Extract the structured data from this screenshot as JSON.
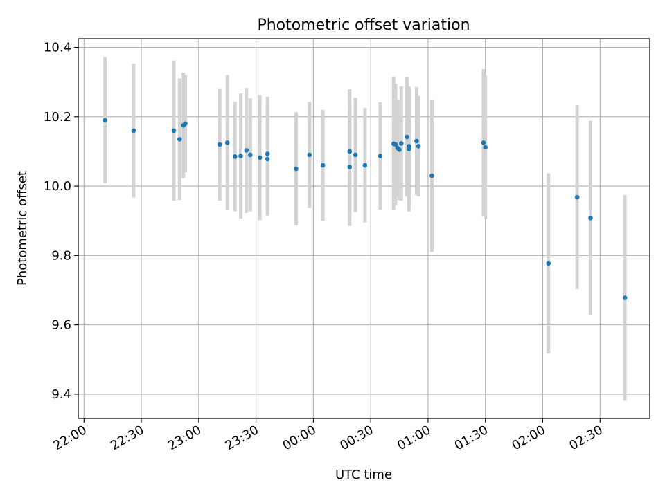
{
  "chart_data": {
    "type": "scatter",
    "title": "Photometric offset variation",
    "xlabel": "UTC time",
    "ylabel": "Photometric offset",
    "xlim": [
      "21:57",
      "02:56"
    ],
    "ylim": [
      9.33,
      10.425
    ],
    "grid": true,
    "x_ticks": [
      "22:00",
      "22:30",
      "23:00",
      "23:30",
      "00:00",
      "00:30",
      "01:00",
      "01:30",
      "02:00",
      "02:30"
    ],
    "y_ticks": [
      "9.4",
      "9.6",
      "9.8",
      "10.0",
      "10.2",
      "10.4"
    ],
    "colors": {
      "point": "#1f77b4",
      "errorbar": "#d3d3d3",
      "grid": "#b0b0b0"
    },
    "series": [
      {
        "points": [
          {
            "x": "22:11",
            "y": 10.19,
            "yerr": 0.182
          },
          {
            "x": "22:26",
            "y": 10.16,
            "yerr": 0.193
          },
          {
            "x": "22:47",
            "y": 10.16,
            "yerr": 0.202
          },
          {
            "x": "22:50",
            "y": 10.135,
            "yerr": 0.175
          },
          {
            "x": "22:52",
            "y": 10.175,
            "yerr": 0.152
          },
          {
            "x": "22:53",
            "y": 10.18,
            "yerr": 0.14
          },
          {
            "x": "23:11",
            "y": 10.12,
            "yerr": 0.162
          },
          {
            "x": "23:15",
            "y": 10.125,
            "yerr": 0.195
          },
          {
            "x": "23:19",
            "y": 10.085,
            "yerr": 0.158
          },
          {
            "x": "23:22",
            "y": 10.087,
            "yerr": 0.18
          },
          {
            "x": "23:25",
            "y": 10.103,
            "yerr": 0.18
          },
          {
            "x": "23:27",
            "y": 10.09,
            "yerr": 0.163
          },
          {
            "x": "23:32",
            "y": 10.082,
            "yerr": 0.18
          },
          {
            "x": "23:36",
            "y": 10.078,
            "yerr": 0.163
          },
          {
            "x": "23:36",
            "y": 10.093,
            "yerr": 0.165
          },
          {
            "x": "23:51",
            "y": 10.05,
            "yerr": 0.163
          },
          {
            "x": "23:58",
            "y": 10.09,
            "yerr": 0.153
          },
          {
            "x": "00:05",
            "y": 10.06,
            "yerr": 0.16
          },
          {
            "x": "00:19",
            "y": 10.055,
            "yerr": 0.17
          },
          {
            "x": "00:19",
            "y": 10.1,
            "yerr": 0.18
          },
          {
            "x": "00:22",
            "y": 10.09,
            "yerr": 0.165
          },
          {
            "x": "00:27",
            "y": 10.06,
            "yerr": 0.165
          },
          {
            "x": "00:35",
            "y": 10.087,
            "yerr": 0.155
          },
          {
            "x": "00:42",
            "y": 10.122,
            "yerr": 0.192
          },
          {
            "x": "00:43",
            "y": 10.12,
            "yerr": 0.175
          },
          {
            "x": "00:44",
            "y": 10.11,
            "yerr": 0.14
          },
          {
            "x": "00:45",
            "y": 10.105,
            "yerr": 0.145
          },
          {
            "x": "00:46",
            "y": 10.123,
            "yerr": 0.165
          },
          {
            "x": "00:49",
            "y": 10.142,
            "yerr": 0.172
          },
          {
            "x": "00:50",
            "y": 10.115,
            "yerr": 0.172
          },
          {
            "x": "00:50",
            "y": 10.107,
            "yerr": 0.18
          },
          {
            "x": "00:54",
            "y": 10.13,
            "yerr": 0.155
          },
          {
            "x": "00:55",
            "y": 10.115,
            "yerr": 0.145
          },
          {
            "x": "01:02",
            "y": 10.03,
            "yerr": 0.22
          },
          {
            "x": "01:29",
            "y": 10.125,
            "yerr": 0.212
          },
          {
            "x": "01:30",
            "y": 10.112,
            "yerr": 0.207
          },
          {
            "x": "02:03",
            "y": 9.777,
            "yerr": 0.26
          },
          {
            "x": "02:18",
            "y": 9.968,
            "yerr": 0.265
          },
          {
            "x": "02:25",
            "y": 9.908,
            "yerr": 0.28
          },
          {
            "x": "02:43",
            "y": 9.678,
            "yerr": 0.297
          }
        ]
      }
    ]
  }
}
